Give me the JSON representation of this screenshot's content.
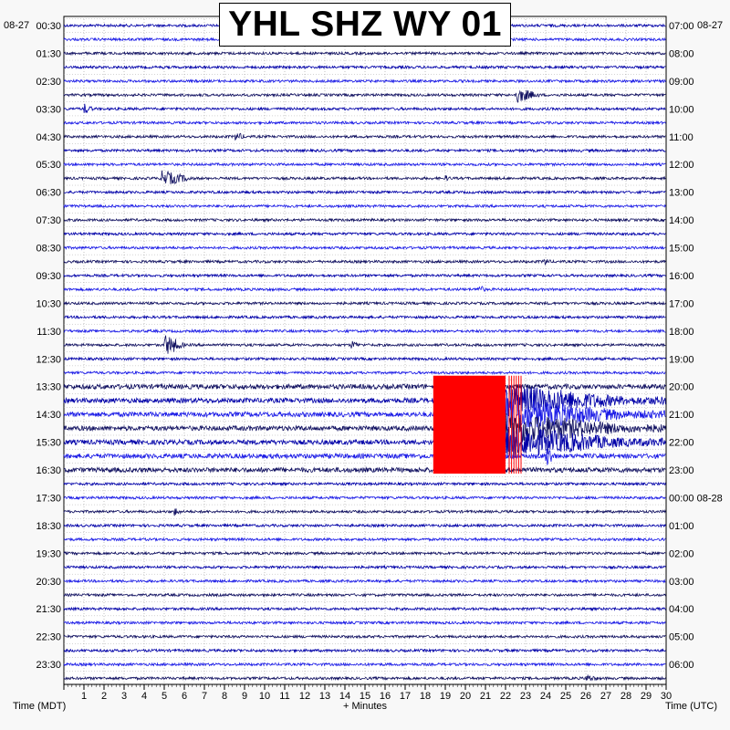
{
  "chart_data": {
    "type": "helicorder",
    "title": "YHL SHZ WY 01",
    "date_left": "08-27",
    "date_right": "08-27",
    "left_axis_label": "Time (MDT)",
    "right_axis_label": "Time (UTC)",
    "x_axis_label": "+ Minutes",
    "x_range": [
      0,
      30
    ],
    "x_ticks": [
      "1",
      "2",
      "3",
      "4",
      "5",
      "6",
      "7",
      "8",
      "9",
      "10",
      "11",
      "12",
      "13",
      "14",
      "15",
      "16",
      "17",
      "18",
      "19",
      "20",
      "21",
      "22",
      "23",
      "24",
      "25",
      "26",
      "27",
      "28",
      "29",
      "30"
    ],
    "traces_count": 48,
    "left_time_labels": [
      "00:30",
      "01:30",
      "02:30",
      "03:30",
      "04:30",
      "05:30",
      "06:30",
      "07:30",
      "08:30",
      "09:30",
      "10:30",
      "11:30",
      "12:30",
      "13:30",
      "14:30",
      "15:30",
      "16:30",
      "17:30",
      "18:30",
      "19:30",
      "20:30",
      "21:30",
      "22:30",
      "23:30"
    ],
    "right_time_labels": [
      "07:00",
      "08:00",
      "09:00",
      "10:00",
      "11:00",
      "12:00",
      "13:00",
      "14:00",
      "15:00",
      "16:00",
      "17:00",
      "18:00",
      "19:00",
      "20:00",
      "21:00",
      "22:00",
      "23:00",
      "00:00 08-28",
      "01:00",
      "02:00",
      "03:00",
      "04:00",
      "05:00",
      "06:00"
    ],
    "trace_colors": [
      "#0000a8",
      "#1a1ae6",
      "#101060"
    ],
    "clip_color": "#ff0000",
    "events": [
      {
        "trace": 5,
        "start_min": 22.5,
        "dur_min": 1.5,
        "amp": 0.5
      },
      {
        "trace": 6,
        "start_min": 1.0,
        "dur_min": 0.6,
        "amp": 0.35
      },
      {
        "trace": 8,
        "start_min": 8.5,
        "dur_min": 0.8,
        "amp": 0.3
      },
      {
        "trace": 11,
        "start_min": 4.8,
        "dur_min": 2.0,
        "amp": 0.5
      },
      {
        "trace": 11,
        "start_min": 19.0,
        "dur_min": 0.5,
        "amp": 0.2
      },
      {
        "trace": 17,
        "start_min": 23.9,
        "dur_min": 0.5,
        "amp": 0.3
      },
      {
        "trace": 19,
        "start_min": 20.6,
        "dur_min": 0.6,
        "amp": 0.3
      },
      {
        "trace": 23,
        "start_min": 5.0,
        "dur_min": 1.2,
        "amp": 0.7
      },
      {
        "trace": 23,
        "start_min": 14.3,
        "dur_min": 0.6,
        "amp": 0.3
      },
      {
        "trace": 31,
        "start_min": 24.0,
        "dur_min": 0.6,
        "amp": 0.8
      },
      {
        "trace": 35,
        "start_min": 5.5,
        "dur_min": 0.5,
        "amp": 0.3
      },
      {
        "trace": 47,
        "start_min": 26.0,
        "dur_min": 1.0,
        "amp": 0.25
      }
    ],
    "major_event": {
      "start_trace": 26,
      "clip_start_min": 18.4,
      "clip_end_min": 22.0,
      "clip_top_trace": 26,
      "clip_bottom_trace": 32,
      "coda_trace_start": 27,
      "coda_trace_end": 30,
      "coda_end_min": 30
    }
  }
}
